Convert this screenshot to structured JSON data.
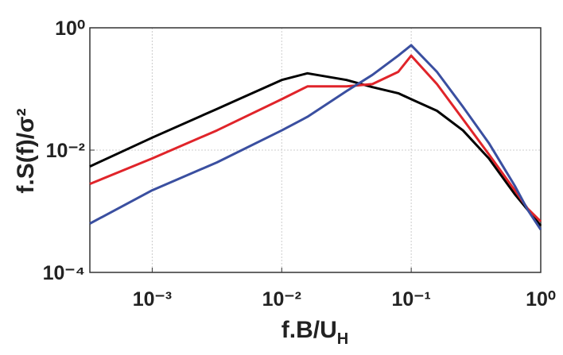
{
  "chart_data": {
    "type": "line",
    "x_label": "f.B/U_H",
    "y_label": "f.S(f)/σ²",
    "xscale": "log",
    "yscale": "log",
    "grid": true,
    "xlim": [
      0.00033,
      1
    ],
    "ylim": [
      0.0001,
      1
    ],
    "xticks": [
      {
        "value": 0.001,
        "label": "10⁻³"
      },
      {
        "value": 0.01,
        "label": "10⁻²"
      },
      {
        "value": 0.1,
        "label": "10⁻¹"
      },
      {
        "value": 1,
        "label": "10⁰"
      }
    ],
    "yticks": [
      {
        "value": 0.0001,
        "label": "10⁻⁴"
      },
      {
        "value": 0.01,
        "label": "10⁻²"
      },
      {
        "value": 1,
        "label": "10⁰"
      }
    ],
    "x": [
      0.00033,
      0.001,
      0.00316,
      0.01,
      0.0158,
      0.0316,
      0.0501,
      0.0794,
      0.1,
      0.158,
      0.251,
      0.398,
      0.631,
      0.794,
      1
    ],
    "series": [
      {
        "color": "#000000",
        "values": [
          0.0054,
          0.016,
          0.047,
          0.14,
          0.18,
          0.14,
          0.107,
          0.085,
          0.068,
          0.044,
          0.021,
          0.0073,
          0.0019,
          0.00105,
          0.00058
        ]
      },
      {
        "color": "#e0242a",
        "values": [
          0.0028,
          0.0073,
          0.021,
          0.068,
          0.11,
          0.11,
          0.12,
          0.19,
          0.35,
          0.12,
          0.032,
          0.0085,
          0.0022,
          0.0011,
          0.00068
        ]
      },
      {
        "color": "#3a4fa0",
        "values": [
          0.00063,
          0.0022,
          0.0063,
          0.021,
          0.035,
          0.092,
          0.17,
          0.35,
          0.52,
          0.19,
          0.051,
          0.013,
          0.0026,
          0.00105,
          0.0005
        ]
      }
    ]
  }
}
